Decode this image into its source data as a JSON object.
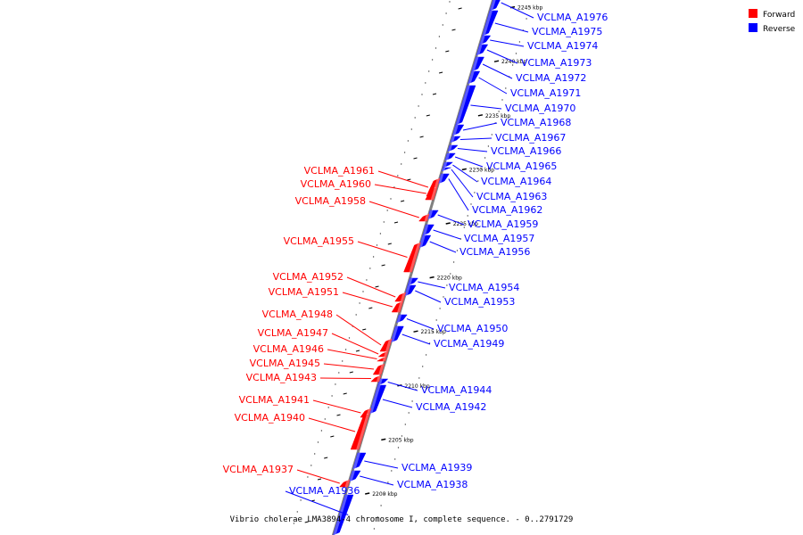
{
  "caption": "Vibrio cholerae LMA3894-4 chromosome I, complete sequence. - 0..2791729",
  "legend": [
    {
      "label": "Forward",
      "color": "#ff0000"
    },
    {
      "label": "Reverse",
      "color": "#0000ff"
    }
  ],
  "colors": {
    "forward": "#ff0000",
    "reverse": "#0000ff",
    "backbone": "#808080"
  },
  "ticks": [
    "2200 kbp",
    "2205 kbp",
    "2210 kbp",
    "2215 kbp",
    "2220 kbp",
    "2225 kbp",
    "2230 kbp",
    "2235 kbp",
    "2240 kbp",
    "2245 kbp"
  ],
  "genes": [
    {
      "name": "VCLMA_A1976",
      "strand": "reverse"
    },
    {
      "name": "VCLMA_A1975",
      "strand": "reverse"
    },
    {
      "name": "VCLMA_A1974",
      "strand": "reverse"
    },
    {
      "name": "VCLMA_A1973",
      "strand": "reverse"
    },
    {
      "name": "VCLMA_A1972",
      "strand": "reverse"
    },
    {
      "name": "VCLMA_A1971",
      "strand": "reverse"
    },
    {
      "name": "VCLMA_A1970",
      "strand": "reverse"
    },
    {
      "name": "VCLMA_A1968",
      "strand": "reverse"
    },
    {
      "name": "VCLMA_A1967",
      "strand": "reverse"
    },
    {
      "name": "VCLMA_A1966",
      "strand": "reverse"
    },
    {
      "name": "VCLMA_A1965",
      "strand": "reverse"
    },
    {
      "name": "VCLMA_A1964",
      "strand": "reverse"
    },
    {
      "name": "VCLMA_A1963",
      "strand": "reverse"
    },
    {
      "name": "VCLMA_A1962",
      "strand": "reverse"
    },
    {
      "name": "VCLMA_A1961",
      "strand": "forward"
    },
    {
      "name": "VCLMA_A1960",
      "strand": "forward"
    },
    {
      "name": "VCLMA_A1959",
      "strand": "reverse"
    },
    {
      "name": "VCLMA_A1958",
      "strand": "forward"
    },
    {
      "name": "VCLMA_A1957",
      "strand": "reverse"
    },
    {
      "name": "VCLMA_A1956",
      "strand": "reverse"
    },
    {
      "name": "VCLMA_A1955",
      "strand": "forward"
    },
    {
      "name": "VCLMA_A1954",
      "strand": "reverse"
    },
    {
      "name": "VCLMA_A1953",
      "strand": "reverse"
    },
    {
      "name": "VCLMA_A1952",
      "strand": "forward"
    },
    {
      "name": "VCLMA_A1951",
      "strand": "forward"
    },
    {
      "name": "VCLMA_A1950",
      "strand": "reverse"
    },
    {
      "name": "VCLMA_A1949",
      "strand": "reverse"
    },
    {
      "name": "VCLMA_A1948",
      "strand": "forward"
    },
    {
      "name": "VCLMA_A1947",
      "strand": "forward"
    },
    {
      "name": "VCLMA_A1946",
      "strand": "forward"
    },
    {
      "name": "VCLMA_A1945",
      "strand": "forward"
    },
    {
      "name": "VCLMA_A1944",
      "strand": "reverse"
    },
    {
      "name": "VCLMA_A1943",
      "strand": "forward"
    },
    {
      "name": "VCLMA_A1942",
      "strand": "reverse"
    },
    {
      "name": "VCLMA_A1941",
      "strand": "forward"
    },
    {
      "name": "VCLMA_A1940",
      "strand": "forward"
    },
    {
      "name": "VCLMA_A1939",
      "strand": "reverse"
    },
    {
      "name": "VCLMA_A1938",
      "strand": "reverse"
    },
    {
      "name": "VCLMA_A1937",
      "strand": "forward"
    },
    {
      "name": "VCLMA_A1936",
      "strand": "reverse"
    }
  ]
}
